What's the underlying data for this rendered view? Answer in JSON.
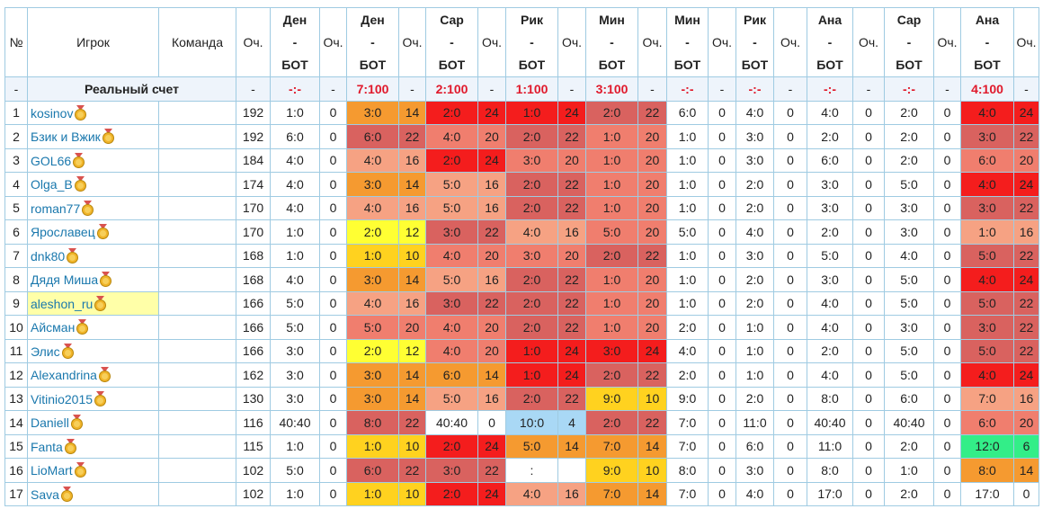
{
  "header": {
    "number": "№",
    "player": "Игрок",
    "team": "Команда",
    "points": "Оч.",
    "matches": [
      {
        "home": "Ден",
        "dash": "-",
        "away": "БОТ",
        "points": "Оч.",
        "colored": false
      },
      {
        "home": "Ден",
        "dash": "-",
        "away": "БОТ",
        "points": "Оч.",
        "colored": true
      },
      {
        "home": "Сар",
        "dash": "-",
        "away": "БОТ",
        "points": "Оч.",
        "colored": true
      },
      {
        "home": "Рик",
        "dash": "-",
        "away": "БОТ",
        "points": "Оч.",
        "colored": true
      },
      {
        "home": "Мин",
        "dash": "-",
        "away": "БОТ",
        "points": "Оч.",
        "colored": true
      },
      {
        "home": "Мин",
        "dash": "-",
        "away": "БОТ",
        "points": "Оч.",
        "colored": false
      },
      {
        "home": "Рик",
        "dash": "-",
        "away": "БОТ",
        "points": "Оч.",
        "colored": false
      },
      {
        "home": "Ана",
        "dash": "-",
        "away": "БОТ",
        "points": "Оч.",
        "colored": false
      },
      {
        "home": "Сар",
        "dash": "-",
        "away": "БОТ",
        "points": "Оч.",
        "colored": false
      },
      {
        "home": "Ана",
        "dash": "-",
        "away": "БОТ",
        "points": "Оч.",
        "colored": true
      }
    ]
  },
  "real_score": {
    "number": "-",
    "label": "Реальный счет",
    "points": "-",
    "matches": [
      {
        "score": "-:-",
        "points": "-"
      },
      {
        "score": "7:100",
        "points": "-"
      },
      {
        "score": "2:100",
        "points": "-"
      },
      {
        "score": "1:100",
        "points": "-"
      },
      {
        "score": "3:100",
        "points": "-"
      },
      {
        "score": "-:-",
        "points": "-"
      },
      {
        "score": "-:-",
        "points": "-"
      },
      {
        "score": "-:-",
        "points": "-"
      },
      {
        "score": "-:-",
        "points": "-"
      },
      {
        "score": "4:100",
        "points": "-"
      }
    ]
  },
  "rows": [
    {
      "number": 1,
      "player": "kosinov",
      "points": 192,
      "matches": [
        [
          "1:0",
          0
        ],
        [
          "3:0",
          14
        ],
        [
          "2:0",
          24
        ],
        [
          "1:0",
          24
        ],
        [
          "2:0",
          22
        ],
        [
          "6:0",
          0
        ],
        [
          "4:0",
          0
        ],
        [
          "4:0",
          0
        ],
        [
          "2:0",
          0
        ],
        [
          "4:0",
          24
        ]
      ]
    },
    {
      "number": 2,
      "player": "Бзик и Вжик",
      "points": 192,
      "matches": [
        [
          "6:0",
          0
        ],
        [
          "6:0",
          22
        ],
        [
          "4:0",
          20
        ],
        [
          "2:0",
          22
        ],
        [
          "1:0",
          20
        ],
        [
          "1:0",
          0
        ],
        [
          "3:0",
          0
        ],
        [
          "2:0",
          0
        ],
        [
          "2:0",
          0
        ],
        [
          "3:0",
          22
        ]
      ]
    },
    {
      "number": 3,
      "player": "GOL66",
      "points": 184,
      "matches": [
        [
          "4:0",
          0
        ],
        [
          "4:0",
          16
        ],
        [
          "2:0",
          24
        ],
        [
          "3:0",
          20
        ],
        [
          "1:0",
          20
        ],
        [
          "1:0",
          0
        ],
        [
          "3:0",
          0
        ],
        [
          "6:0",
          0
        ],
        [
          "2:0",
          0
        ],
        [
          "6:0",
          20
        ]
      ]
    },
    {
      "number": 4,
      "player": "Olga_B",
      "points": 174,
      "matches": [
        [
          "4:0",
          0
        ],
        [
          "3:0",
          14
        ],
        [
          "5:0",
          16
        ],
        [
          "2:0",
          22
        ],
        [
          "1:0",
          20
        ],
        [
          "1:0",
          0
        ],
        [
          "2:0",
          0
        ],
        [
          "3:0",
          0
        ],
        [
          "5:0",
          0
        ],
        [
          "4:0",
          24
        ]
      ]
    },
    {
      "number": 5,
      "player": "roman77",
      "points": 170,
      "matches": [
        [
          "4:0",
          0
        ],
        [
          "4:0",
          16
        ],
        [
          "5:0",
          16
        ],
        [
          "2:0",
          22
        ],
        [
          "1:0",
          20
        ],
        [
          "1:0",
          0
        ],
        [
          "2:0",
          0
        ],
        [
          "3:0",
          0
        ],
        [
          "3:0",
          0
        ],
        [
          "3:0",
          22
        ]
      ]
    },
    {
      "number": 6,
      "player": "Ярославец",
      "points": 170,
      "matches": [
        [
          "1:0",
          0
        ],
        [
          "2:0",
          12
        ],
        [
          "3:0",
          22
        ],
        [
          "4:0",
          16
        ],
        [
          "5:0",
          20
        ],
        [
          "5:0",
          0
        ],
        [
          "4:0",
          0
        ],
        [
          "2:0",
          0
        ],
        [
          "3:0",
          0
        ],
        [
          "1:0",
          16
        ]
      ]
    },
    {
      "number": 7,
      "player": "dnk80",
      "points": 168,
      "matches": [
        [
          "1:0",
          0
        ],
        [
          "1:0",
          10
        ],
        [
          "4:0",
          20
        ],
        [
          "3:0",
          20
        ],
        [
          "2:0",
          22
        ],
        [
          "1:0",
          0
        ],
        [
          "3:0",
          0
        ],
        [
          "5:0",
          0
        ],
        [
          "4:0",
          0
        ],
        [
          "5:0",
          22
        ]
      ]
    },
    {
      "number": 8,
      "player": "Дядя Миша",
      "points": 168,
      "matches": [
        [
          "4:0",
          0
        ],
        [
          "3:0",
          14
        ],
        [
          "5:0",
          16
        ],
        [
          "2:0",
          22
        ],
        [
          "1:0",
          20
        ],
        [
          "1:0",
          0
        ],
        [
          "2:0",
          0
        ],
        [
          "3:0",
          0
        ],
        [
          "5:0",
          0
        ],
        [
          "4:0",
          24
        ]
      ]
    },
    {
      "number": 9,
      "player": "aleshon_ru",
      "points": 166,
      "highlight": true,
      "matches": [
        [
          "5:0",
          0
        ],
        [
          "4:0",
          16
        ],
        [
          "3:0",
          22
        ],
        [
          "2:0",
          22
        ],
        [
          "1:0",
          20
        ],
        [
          "1:0",
          0
        ],
        [
          "2:0",
          0
        ],
        [
          "4:0",
          0
        ],
        [
          "5:0",
          0
        ],
        [
          "5:0",
          22
        ]
      ]
    },
    {
      "number": 10,
      "player": "Айсман",
      "points": 166,
      "matches": [
        [
          "5:0",
          0
        ],
        [
          "5:0",
          20
        ],
        [
          "4:0",
          20
        ],
        [
          "2:0",
          22
        ],
        [
          "1:0",
          20
        ],
        [
          "2:0",
          0
        ],
        [
          "1:0",
          0
        ],
        [
          "4:0",
          0
        ],
        [
          "3:0",
          0
        ],
        [
          "3:0",
          22
        ]
      ]
    },
    {
      "number": 11,
      "player": "Элис",
      "points": 166,
      "matches": [
        [
          "3:0",
          0
        ],
        [
          "2:0",
          12
        ],
        [
          "4:0",
          20
        ],
        [
          "1:0",
          24
        ],
        [
          "3:0",
          24
        ],
        [
          "4:0",
          0
        ],
        [
          "1:0",
          0
        ],
        [
          "2:0",
          0
        ],
        [
          "5:0",
          0
        ],
        [
          "5:0",
          22
        ]
      ]
    },
    {
      "number": 12,
      "player": "Alexandrina",
      "points": 162,
      "matches": [
        [
          "3:0",
          0
        ],
        [
          "3:0",
          14
        ],
        [
          "6:0",
          14
        ],
        [
          "1:0",
          24
        ],
        [
          "2:0",
          22
        ],
        [
          "2:0",
          0
        ],
        [
          "1:0",
          0
        ],
        [
          "4:0",
          0
        ],
        [
          "5:0",
          0
        ],
        [
          "4:0",
          24
        ]
      ]
    },
    {
      "number": 13,
      "player": "Vitinio2015",
      "points": 130,
      "matches": [
        [
          "3:0",
          0
        ],
        [
          "3:0",
          14
        ],
        [
          "5:0",
          16
        ],
        [
          "2:0",
          22
        ],
        [
          "9:0",
          10
        ],
        [
          "9:0",
          0
        ],
        [
          "2:0",
          0
        ],
        [
          "8:0",
          0
        ],
        [
          "6:0",
          0
        ],
        [
          "7:0",
          16
        ]
      ]
    },
    {
      "number": 14,
      "player": "Daniell",
      "points": 116,
      "matches": [
        [
          "40:40",
          0
        ],
        [
          "8:0",
          22
        ],
        [
          "40:40",
          0
        ],
        [
          "10:0",
          4
        ],
        [
          "2:0",
          22
        ],
        [
          "7:0",
          0
        ],
        [
          "11:0",
          0
        ],
        [
          "40:40",
          0
        ],
        [
          "40:40",
          0
        ],
        [
          "6:0",
          20
        ]
      ]
    },
    {
      "number": 15,
      "player": "Fanta",
      "points": 115,
      "matches": [
        [
          "1:0",
          0
        ],
        [
          "1:0",
          10
        ],
        [
          "2:0",
          24
        ],
        [
          "5:0",
          14
        ],
        [
          "7:0",
          14
        ],
        [
          "7:0",
          0
        ],
        [
          "6:0",
          0
        ],
        [
          "11:0",
          0
        ],
        [
          "2:0",
          0
        ],
        [
          "12:0",
          6
        ]
      ]
    },
    {
      "number": 16,
      "player": "LioMart",
      "points": 102,
      "matches": [
        [
          "5:0",
          0
        ],
        [
          "6:0",
          22
        ],
        [
          "3:0",
          22
        ],
        [
          ":",
          null
        ],
        [
          "9:0",
          10
        ],
        [
          "8:0",
          0
        ],
        [
          "3:0",
          0
        ],
        [
          "8:0",
          0
        ],
        [
          "1:0",
          0
        ],
        [
          "8:0",
          14
        ]
      ]
    },
    {
      "number": 17,
      "player": "Sava",
      "points": 102,
      "matches": [
        [
          "1:0",
          0
        ],
        [
          "1:0",
          10
        ],
        [
          "2:0",
          24
        ],
        [
          "4:0",
          16
        ],
        [
          "7:0",
          14
        ],
        [
          "7:0",
          0
        ],
        [
          "4:0",
          0
        ],
        [
          "17:0",
          0
        ],
        [
          "2:0",
          0
        ],
        [
          "17:0",
          0
        ]
      ]
    }
  ],
  "cell_colors": {
    "0": "#ffffff",
    "4": "#a9d8f5",
    "6": "#33ee88",
    "10": "#ffd21f",
    "12": "#ffff33",
    "14": "#f59a30",
    "16": "#f6a283",
    "20": "#f07e6e",
    "22": "#d9625f",
    "24": "#f41d1d"
  }
}
